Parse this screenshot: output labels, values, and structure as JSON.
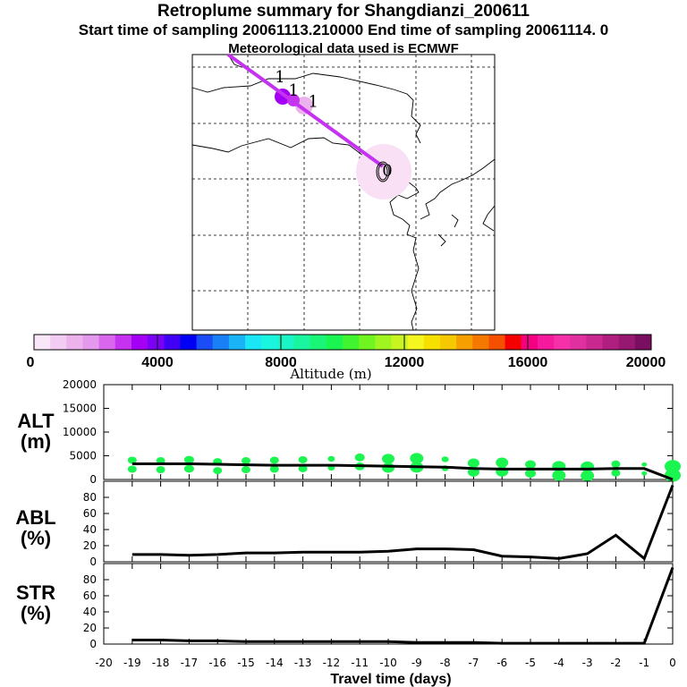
{
  "header": {
    "title": "Retroplume summary for Shangdianzi_200611",
    "sampling": "Start time of sampling 20061113.210000     End time of sampling 20061114.     0",
    "met": "Meteorological data used is ECMWF"
  },
  "map": {
    "labels": [
      {
        "text": "1",
        "lon_frac": 0.29,
        "lat_frac": 0.1
      },
      {
        "text": "1",
        "lon_frac": 0.335,
        "lat_frac": 0.15
      },
      {
        "text": "1",
        "lon_frac": 0.4,
        "lat_frac": 0.19
      },
      {
        "text": "0",
        "lon_frac": 0.645,
        "lat_frac": 0.44
      }
    ]
  },
  "colorbar": {
    "label": "Altitude (m)",
    "ticks": [
      "0",
      "4000",
      "8000",
      "12000",
      "16000",
      "20000"
    ],
    "colors": [
      "#f9e6f9",
      "#f3ccf3",
      "#ecb2ec",
      "#e599ec",
      "#d966ec",
      "#c533f0",
      "#a300f5",
      "#7b00f5",
      "#4000f5",
      "#0000f5",
      "#1a4df5",
      "#1a80f5",
      "#1ab3f5",
      "#1ae6f5",
      "#1af5e0",
      "#1af5c5",
      "#1af5a0",
      "#1af578",
      "#1af550",
      "#40f530",
      "#70f520",
      "#a0f520",
      "#c8f520",
      "#f5f520",
      "#f5e000",
      "#f5c800",
      "#f5a000",
      "#f57800",
      "#f55000",
      "#f50000",
      "#f50080",
      "#f5199d",
      "#f530a8",
      "#e030a0",
      "#c82890",
      "#b01e80",
      "#961870",
      "#7a0e60"
    ]
  },
  "chart_data": [
    {
      "type": "line",
      "name": "ALT",
      "ylabel": "ALT\n(m)",
      "ylabel_lines": [
        "ALT",
        "(m)"
      ],
      "yticks": [
        "20000",
        "15000",
        "10000",
        "5000",
        "0"
      ],
      "ylim": [
        0,
        20000
      ],
      "x": [
        -19,
        -18,
        -17,
        -16,
        -15,
        -14,
        -13,
        -12,
        -11,
        -10,
        -9,
        -8,
        -7,
        -6,
        -5,
        -4,
        -3,
        -2,
        -1,
        0
      ],
      "values": [
        3300,
        3300,
        3300,
        3200,
        3100,
        3000,
        3000,
        3000,
        2900,
        2800,
        2700,
        2600,
        2300,
        2200,
        2200,
        2200,
        2200,
        2300,
        2300,
        0
      ],
      "spread": [
        {
          "x": -19,
          "y": 3300,
          "s": 1
        },
        {
          "x": -18,
          "y": 3200,
          "s": 1
        },
        {
          "x": -17,
          "y": 3400,
          "s": 1.1
        },
        {
          "x": -16,
          "y": 3000,
          "s": 1
        },
        {
          "x": -15,
          "y": 3200,
          "s": 1
        },
        {
          "x": -14,
          "y": 3300,
          "s": 1
        },
        {
          "x": -13,
          "y": 3400,
          "s": 1
        },
        {
          "x": -12,
          "y": 3600,
          "s": 0.8
        },
        {
          "x": -11,
          "y": 3900,
          "s": 1.1
        },
        {
          "x": -10,
          "y": 3600,
          "s": 1.4
        },
        {
          "x": -9,
          "y": 3700,
          "s": 1.5
        },
        {
          "x": -8,
          "y": 3500,
          "s": 0.8
        },
        {
          "x": -7,
          "y": 2700,
          "s": 1.3
        },
        {
          "x": -6,
          "y": 2800,
          "s": 1.4
        },
        {
          "x": -5,
          "y": 2400,
          "s": 1.2
        },
        {
          "x": -4,
          "y": 2000,
          "s": 1.5
        },
        {
          "x": -3,
          "y": 1900,
          "s": 1.5
        },
        {
          "x": -2,
          "y": 2500,
          "s": 1
        },
        {
          "x": -1,
          "y": 2400,
          "s": 0.6
        },
        {
          "x": 0,
          "y": 2000,
          "s": 1.8
        }
      ]
    },
    {
      "type": "line",
      "name": "ABL",
      "ylabel_lines": [
        "ABL",
        "(%)"
      ],
      "yticks": [
        "80",
        "60",
        "40",
        "20",
        "0"
      ],
      "ylim": [
        0,
        100
      ],
      "x": [
        -19,
        -18,
        -17,
        -16,
        -15,
        -14,
        -13,
        -12,
        -11,
        -10,
        -9,
        -8,
        -7,
        -6,
        -5,
        -4,
        -3,
        -2,
        -1,
        0
      ],
      "values": [
        9,
        9,
        8,
        9,
        11,
        11,
        12,
        12,
        12,
        13,
        16,
        16,
        15,
        7,
        6,
        4,
        10,
        33,
        4,
        95
      ]
    },
    {
      "type": "line",
      "name": "STR",
      "ylabel_lines": [
        "STR",
        "(%)"
      ],
      "yticks": [
        "80",
        "60",
        "40",
        "20",
        "0"
      ],
      "ylim": [
        0,
        100
      ],
      "x": [
        -19,
        -18,
        -17,
        -16,
        -15,
        -14,
        -13,
        -12,
        -11,
        -10,
        -9,
        -8,
        -7,
        -6,
        -5,
        -4,
        -3,
        -2,
        -1,
        0
      ],
      "values": [
        5,
        5,
        4,
        4,
        3,
        3,
        3,
        3,
        3,
        3,
        2,
        2,
        2,
        1,
        1,
        1,
        1,
        1,
        1,
        95
      ],
      "xlabel": "Travel time (days)",
      "xticks": [
        "-20",
        "-19",
        "-18",
        "-17",
        "-16",
        "-15",
        "-14",
        "-13",
        "-12",
        "-11",
        "-10",
        "-9",
        "-8",
        "-7",
        "-6",
        "-5",
        "-4",
        "-3",
        "-2",
        "-1",
        "0"
      ]
    }
  ]
}
